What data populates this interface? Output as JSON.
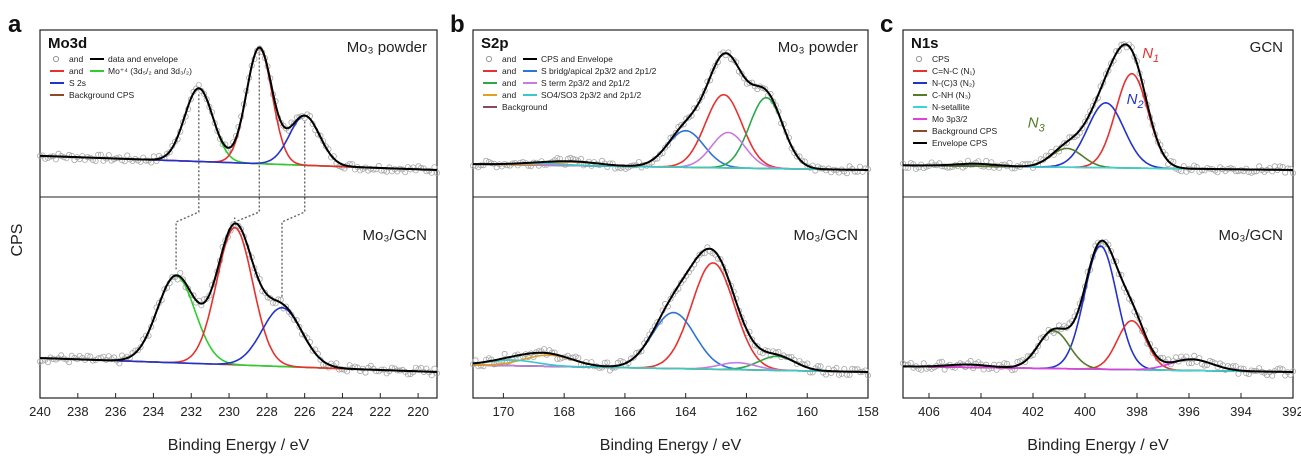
{
  "figure": {
    "ylabel": "CPS"
  },
  "chart_data": [
    {
      "panel": "a",
      "type": "line",
      "title": "Mo3d",
      "xlabel": "Binding Energy / eV",
      "ylabel": "CPS",
      "xlim": [
        240,
        219
      ],
      "xticks": [
        240,
        238,
        236,
        234,
        232,
        230,
        228,
        226,
        224,
        222,
        220
      ],
      "tick_labels": [
        "240",
        "238",
        "236",
        "234",
        "232",
        "230",
        "228",
        "226",
        "224",
        "222",
        "220"
      ],
      "grid": false,
      "legend": {
        "position": "top-left",
        "entries": [
          {
            "text_a": "and",
            "text_b": "data and envelope",
            "sym_a": "circle",
            "color_a": "#999999",
            "sym_b": "line",
            "color_b": "#000000"
          },
          {
            "text_a": "and",
            "text_b": "Mo⁺⁴ (3d₅/₂ and 3d₃/₂)",
            "sym_a": "line",
            "color_a": "#e8312f",
            "sym_b": "line",
            "color_b": "#2fcd2f"
          },
          {
            "text_a": "S 2s",
            "sym_a": "line",
            "color_a": "#2233cc"
          },
          {
            "text_a": "Background CPS",
            "sym_a": "line",
            "color_a": "#8b4a2b"
          }
        ]
      },
      "spectra": [
        {
          "label": "Mo₃ powder",
          "background": {
            "start": 0.12,
            "end": 0.0
          },
          "components": [
            {
              "name": "Mo3d 3/2",
              "color": "#2fcd2f",
              "center": 231.6,
              "height": 0.62,
              "width": 0.75
            },
            {
              "name": "Mo3d 5/2",
              "color": "#e8312f",
              "center": 228.4,
              "height": 0.98,
              "width": 0.68
            },
            {
              "name": "S 2s",
              "color": "#2233cc",
              "center": 226.0,
              "height": 0.42,
              "width": 0.8
            }
          ]
        },
        {
          "label": "Mo₃/GCN",
          "background": {
            "start": 0.1,
            "end": 0.0
          },
          "components": [
            {
              "name": "Mo3d 3/2",
              "color": "#2fcd2f",
              "center": 232.8,
              "height": 0.62,
              "width": 1.0
            },
            {
              "name": "Mo3d 5/2",
              "color": "#e8312f",
              "center": 229.7,
              "height": 0.98,
              "width": 0.95
            },
            {
              "name": "S 2s",
              "color": "#2233cc",
              "center": 227.2,
              "height": 0.42,
              "width": 1.05
            }
          ]
        }
      ],
      "guide_lines": [
        {
          "from": 231.6,
          "to": 232.8
        },
        {
          "from": 228.4,
          "to": 229.7
        },
        {
          "from": 226.0,
          "to": 227.2
        }
      ]
    },
    {
      "panel": "b",
      "type": "line",
      "title": "S2p",
      "xlabel": "Binding Energy / eV",
      "xlim": [
        171,
        158
      ],
      "xticks": [
        170,
        168,
        166,
        164,
        162,
        160,
        158
      ],
      "tick_labels": [
        "170",
        "168",
        "166",
        "164",
        "162",
        "160",
        "158"
      ],
      "grid": false,
      "legend": {
        "position": "top-left",
        "entries": [
          {
            "text_a": "and",
            "text_b": "CPS and Envelope",
            "sym_a": "circle",
            "color_a": "#999999",
            "sym_b": "line",
            "color_b": "#000000"
          },
          {
            "text_a": "and",
            "text_b": "S bridg/apical 2p3/2 and 2p1/2",
            "sym_a": "line",
            "color_a": "#e8312f",
            "sym_b": "line",
            "color_b": "#2f73d6"
          },
          {
            "text_a": "and",
            "text_b": "S term 2p3/2 and 2p1/2",
            "sym_a": "line",
            "color_a": "#2ba84a",
            "sym_b": "line",
            "color_b": "#c77be0"
          },
          {
            "text_a": "and",
            "text_b": "SO4/SO3 2p3/2 and 2p1/2",
            "sym_a": "line",
            "color_a": "#e0a020",
            "sym_b": "line",
            "color_b": "#3ac8c8"
          },
          {
            "text_a": "Background",
            "sym_a": "line",
            "color_a": "#8b4a5a"
          }
        ]
      },
      "spectra": [
        {
          "label": "Mo₃ powder",
          "background": {
            "start": 0.05,
            "end": 0.0
          },
          "components": [
            {
              "name": "S bridg 2p3/2",
              "color": "#e8312f",
              "center": 162.75,
              "height": 0.62,
              "width": 0.6
            },
            {
              "name": "S bridg 2p1/2",
              "color": "#2f73d6",
              "center": 164.0,
              "height": 0.31,
              "width": 0.6
            },
            {
              "name": "S term 2p3/2",
              "color": "#2ba84a",
              "center": 161.35,
              "height": 0.6,
              "width": 0.55
            },
            {
              "name": "S term 2p1/2",
              "color": "#c77be0",
              "center": 162.6,
              "height": 0.3,
              "width": 0.55
            },
            {
              "name": "SO4 2p3/2",
              "color": "#e0a020",
              "center": 167.6,
              "height": 0.03,
              "width": 0.8
            },
            {
              "name": "SO4 2p1/2",
              "color": "#3ac8c8",
              "center": 168.8,
              "height": 0.015,
              "width": 0.8
            }
          ]
        },
        {
          "label": "Mo₃/GCN",
          "background": {
            "start": 0.05,
            "end": 0.0
          },
          "components": [
            {
              "name": "S bridg 2p3/2",
              "color": "#e8312f",
              "center": 163.1,
              "height": 0.76,
              "width": 0.7
            },
            {
              "name": "S bridg 2p1/2",
              "color": "#2f73d6",
              "center": 164.4,
              "height": 0.4,
              "width": 0.7
            },
            {
              "name": "S term 2p3/2",
              "color": "#2ba84a",
              "center": 161.0,
              "height": 0.1,
              "width": 0.6
            },
            {
              "name": "S term 2p1/2",
              "color": "#c77be0",
              "center": 162.3,
              "height": 0.05,
              "width": 0.6
            },
            {
              "name": "SO4 2p3/2",
              "color": "#e0a020",
              "center": 168.5,
              "height": 0.08,
              "width": 0.8
            },
            {
              "name": "SO4 2p1/2",
              "color": "#3ac8c8",
              "center": 169.7,
              "height": 0.04,
              "width": 0.8
            }
          ]
        }
      ]
    },
    {
      "panel": "c",
      "type": "line",
      "title": "N1s",
      "xlabel": "Binding Energy / eV",
      "xlim": [
        407,
        392
      ],
      "xticks": [
        406,
        404,
        402,
        400,
        398,
        396,
        394,
        392
      ],
      "tick_labels": [
        "406",
        "404",
        "402",
        "400",
        "398",
        "396",
        "394",
        "392"
      ],
      "grid": false,
      "legend": {
        "position": "top-left",
        "entries": [
          {
            "text_a": "CPS",
            "sym_a": "circle",
            "color_a": "#999999"
          },
          {
            "text_a": "C=N-C (N₁)",
            "sym_a": "line",
            "color_a": "#e8312f"
          },
          {
            "text_a": "N-(C)3 (N₂)",
            "sym_a": "line",
            "color_a": "#2233cc"
          },
          {
            "text_a": "C-NH (N₃)",
            "sym_a": "line",
            "color_a": "#557a2a"
          },
          {
            "text_a": "N-setallite",
            "sym_a": "line",
            "color_a": "#3ad6d6"
          },
          {
            "text_a": "Mo 3p3/2",
            "sym_a": "line",
            "color_a": "#e040e0"
          },
          {
            "text_a": "Background CPS",
            "sym_a": "line",
            "color_a": "#8b4a2b"
          },
          {
            "text_a": "Envelope CPS",
            "sym_a": "line",
            "color_a": "#000000"
          }
        ]
      },
      "spectra": [
        {
          "label": "GCN",
          "background": {
            "start": 0.04,
            "end": 0.0
          },
          "components": [
            {
              "name": "N1",
              "color": "#e8312f",
              "center": 398.2,
              "height": 0.8,
              "width": 0.62
            },
            {
              "name": "N2",
              "color": "#2233cc",
              "center": 399.2,
              "height": 0.55,
              "width": 0.7
            },
            {
              "name": "N3",
              "color": "#557a2a",
              "center": 400.7,
              "height": 0.16,
              "width": 0.6
            },
            {
              "name": "N-satellite",
              "color": "#3ad6d6",
              "center": 404.2,
              "height": 0.02,
              "width": 0.8
            }
          ],
          "annotations": [
            {
              "text": "N",
              "sub": "1",
              "color": "#e8312f",
              "x": 397.8,
              "y": 0.95
            },
            {
              "text": "N",
              "sub": "2",
              "color": "#2233cc",
              "x": 398.4,
              "y": 0.56
            },
            {
              "text": "N",
              "sub": "3",
              "color": "#557a2a",
              "x": 402.2,
              "y": 0.36
            }
          ]
        },
        {
          "label": "Mo₃/GCN",
          "background": {
            "start": 0.04,
            "end": 0.0
          },
          "components": [
            {
              "name": "N2",
              "color": "#2233cc",
              "center": 399.4,
              "height": 0.88,
              "width": 0.62
            },
            {
              "name": "N1",
              "color": "#e8312f",
              "center": 398.2,
              "height": 0.35,
              "width": 0.55
            },
            {
              "name": "N3",
              "color": "#557a2a",
              "center": 401.2,
              "height": 0.27,
              "width": 0.6
            },
            {
              "name": "N-satellite",
              "color": "#3ad6d6",
              "center": 404.5,
              "height": 0.02,
              "width": 0.8
            },
            {
              "name": "Mo 3p3/2",
              "color": "#e040e0",
              "center": 395.9,
              "height": 0.08,
              "width": 0.8
            }
          ]
        }
      ]
    }
  ]
}
